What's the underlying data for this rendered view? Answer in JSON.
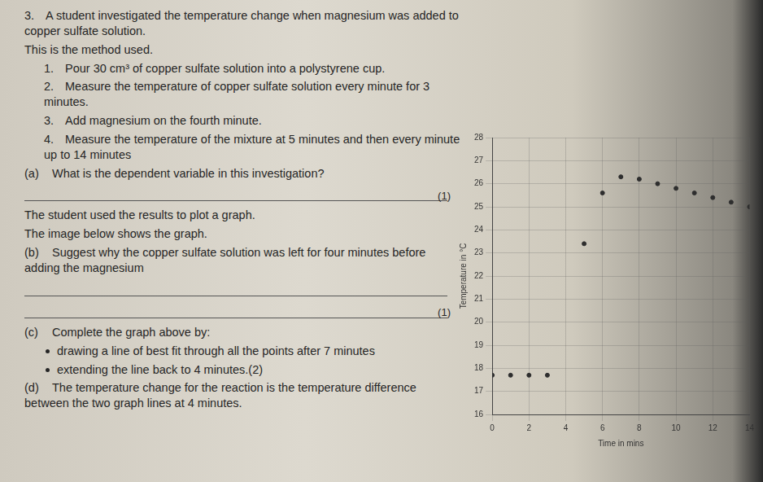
{
  "question": {
    "number": "3.",
    "intro": "A student investigated the temperature change when magnesium was added to copper sulfate solution.",
    "method_heading": "This is the method used.",
    "method": [
      {
        "number": "1.",
        "text": "Pour 30 cm³ of copper sulfate solution into a polystyrene cup."
      },
      {
        "number": "2.",
        "text": "Measure the temperature of copper sulfate solution every minute for 3 minutes."
      },
      {
        "number": "3.",
        "text": "Add magnesium on the fourth minute."
      },
      {
        "number": "4.",
        "text": "Measure the temperature of the mixture at 5 minutes and then every minute up to 14 minutes"
      }
    ],
    "part_a": {
      "label": "(a)",
      "text": "What is the dependent variable in this investigation?",
      "marks": "(1)"
    },
    "graph_intro": [
      "The student used the results to plot a graph.",
      "The image below shows the graph."
    ],
    "part_b": {
      "label": "(b)",
      "text": "Suggest why the copper sulfate solution was left for four minutes before adding the magnesium",
      "marks": "(1)"
    },
    "part_c": {
      "label": "(c)",
      "text": "Complete the graph above by:",
      "bullets": [
        "drawing a line of best fit through all the points after 7 minutes",
        "extending the line back to 4 minutes.(2)"
      ]
    },
    "part_d": {
      "label": "(d)",
      "text": "The temperature change for the reaction is the temperature difference between the two graph lines at 4 minutes."
    }
  },
  "chart_data": {
    "type": "scatter",
    "x_label": "Time in mins",
    "y_label": "Temperature in °C",
    "x": [
      0,
      1,
      2,
      3,
      5,
      6,
      7,
      8,
      9,
      10,
      11,
      12,
      13,
      14
    ],
    "values": [
      17.7,
      17.7,
      17.7,
      17.7,
      23.4,
      25.6,
      26.3,
      26.2,
      26.0,
      25.8,
      25.6,
      25.4,
      25.2,
      25.0
    ],
    "color": "#2e2e2e",
    "marker": "circle",
    "xlim": [
      0,
      14
    ],
    "xticks": [
      0,
      2,
      4,
      6,
      8,
      10,
      12,
      14
    ],
    "ylim": [
      16,
      28
    ],
    "yticks": [
      16,
      17,
      18,
      19,
      20,
      21,
      22,
      23,
      24,
      25,
      26,
      27,
      28
    ],
    "grid": true
  }
}
